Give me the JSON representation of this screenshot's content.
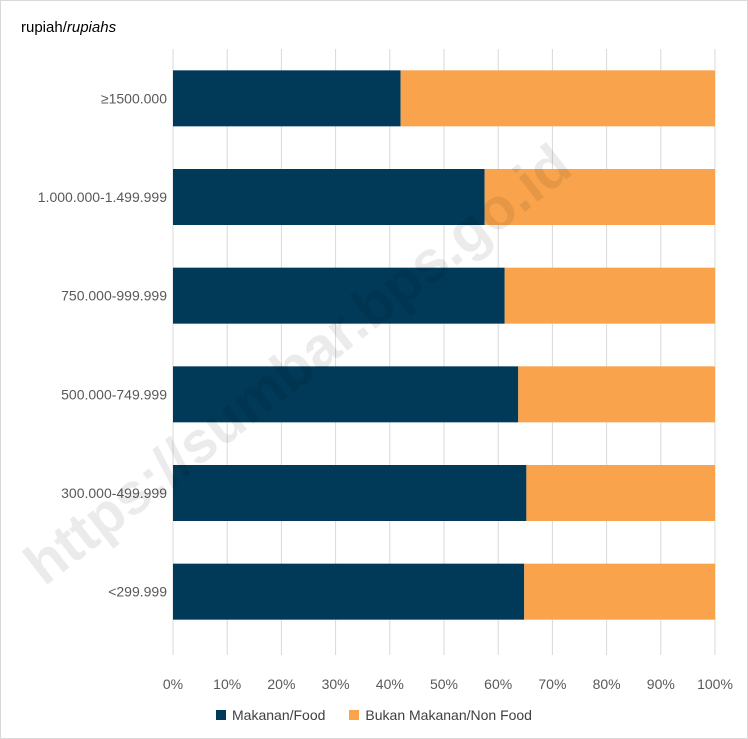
{
  "watermark": "https://sumbar.bps.go.id",
  "unit_label": {
    "main": "rupiah/",
    "italic": "rupiahs"
  },
  "chart_data": {
    "type": "bar",
    "orientation": "horizontal",
    "stacked": "percent",
    "categories": [
      ">=1500.000",
      "1.000.000-1.499.999",
      "750.000-999.999",
      "500.000-749.999",
      "300.000-499.999",
      "<299.999"
    ],
    "category_labels": [
      "≥1500.000",
      "1.000.000-1.499.999",
      "750.000-999.999",
      "500.000-749.999",
      "300.000-499.999",
      "<299.999"
    ],
    "series": [
      {
        "name": "Makanan/Food",
        "values": [
          42,
          57.5,
          61.2,
          63.7,
          65.2,
          64.8
        ],
        "color": "#003a58"
      },
      {
        "name": "Bukan Makanan/Non Food",
        "values": [
          58,
          42.5,
          38.8,
          36.3,
          34.8,
          35.2
        ],
        "color": "#f9a44c"
      }
    ],
    "x_ticks": [
      "0%",
      "10%",
      "20%",
      "30%",
      "40%",
      "50%",
      "60%",
      "70%",
      "80%",
      "90%",
      "100%"
    ],
    "xlim": [
      0,
      100
    ],
    "grid": "vertical",
    "legend": "bottom"
  }
}
